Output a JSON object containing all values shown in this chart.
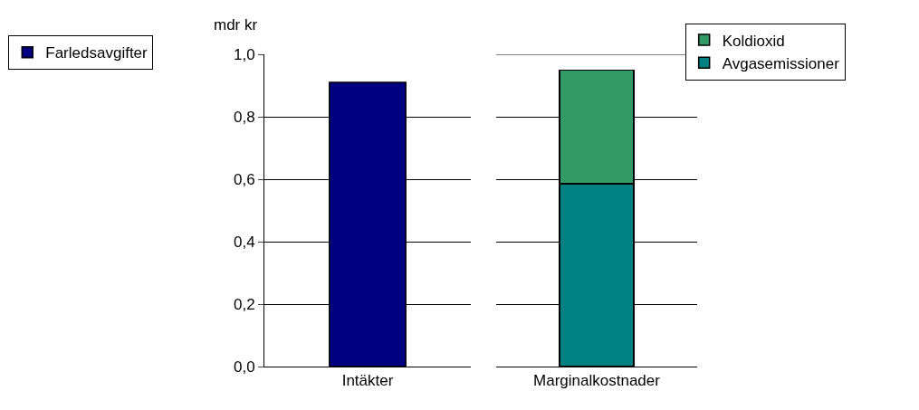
{
  "chart_data": [
    {
      "type": "bar",
      "ylabel": "mdr kr",
      "categories": [
        "Intäkter"
      ],
      "series": [
        {
          "name": "Farledsavgifter",
          "color": "#000080",
          "values": [
            0.91
          ]
        }
      ],
      "ylim": [
        0,
        1
      ],
      "yticks": [
        {
          "value": 0,
          "label": "0,0"
        },
        {
          "value": 0.2,
          "label": "0,2"
        },
        {
          "value": 0.4,
          "label": "0,4"
        },
        {
          "value": 0.6,
          "label": "0,6"
        },
        {
          "value": 0.8,
          "label": "0,8"
        },
        {
          "value": 1,
          "label": "1,0"
        }
      ],
      "grid": "y",
      "legend": "left"
    },
    {
      "type": "bar",
      "categories": [
        "Marginalkostnader"
      ],
      "stacked": true,
      "series": [
        {
          "name": "Avgasemissioner",
          "color": "#008080",
          "values": [
            0.585
          ]
        },
        {
          "name": "Koldioxid",
          "color": "#339966",
          "values": [
            0.365
          ]
        }
      ],
      "ylim": [
        0,
        1
      ],
      "yticks": [
        {
          "value": 0,
          "label": null
        },
        {
          "value": 0.2,
          "label": null
        },
        {
          "value": 0.4,
          "label": null
        },
        {
          "value": 0.6,
          "label": null
        },
        {
          "value": 0.8,
          "label": null
        },
        {
          "value": 1,
          "label": null
        }
      ],
      "grid": "y",
      "legend": "top right",
      "tick_labels": "x"
    }
  ]
}
